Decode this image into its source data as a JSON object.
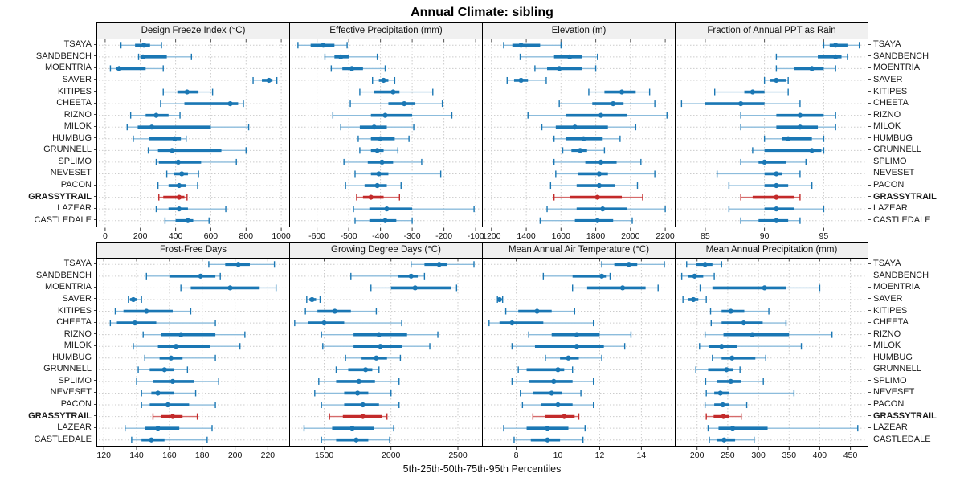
{
  "title": "Annual Climate: sibling",
  "caption": "5th-25th-50th-75th-95th Percentiles",
  "percentiles": [
    5,
    25,
    50,
    75,
    95
  ],
  "sites": [
    "TSAYA",
    "SANDBENCH",
    "MOENTRIA",
    "SAVER",
    "KITIPES",
    "CHEETA",
    "RIZNO",
    "MILOK",
    "HUMBUG",
    "GRUNNELL",
    "SPLIMO",
    "NEVESET",
    "PACON",
    "GRASSYTRAIL",
    "LAZEAR",
    "CASTLEDALE"
  ],
  "highlight_site": "GRASSYTRAIL",
  "colors": {
    "series": "#1a77b4",
    "series_light": "#8cbcdc",
    "highlight": "#c32a2a",
    "highlight_light": "#d56a6a",
    "grid": "#cccccc",
    "strip_bg": "#f0f0f0",
    "border": "#000000"
  },
  "layout": {
    "grid": "2 rows x 4 cols",
    "gridlines": "dotted",
    "legend": "none"
  },
  "chart_data": [
    {
      "type": "dotplot",
      "title": "Design Freeze Index (°C)",
      "xlim": [
        -45,
        1045
      ],
      "ticks": [
        0,
        200,
        400,
        600,
        800,
        1000
      ],
      "values": [
        [
          90,
          170,
          220,
          255,
          320
        ],
        [
          190,
          200,
          215,
          350,
          490
        ],
        [
          30,
          60,
          80,
          230,
          330
        ],
        [
          840,
          890,
          930,
          950,
          975
        ],
        [
          330,
          410,
          465,
          530,
          610
        ],
        [
          315,
          450,
          710,
          755,
          785
        ],
        [
          145,
          230,
          290,
          360,
          425
        ],
        [
          125,
          185,
          265,
          600,
          815
        ],
        [
          160,
          250,
          395,
          430,
          460
        ],
        [
          245,
          300,
          380,
          660,
          800
        ],
        [
          290,
          305,
          415,
          545,
          745
        ],
        [
          350,
          390,
          435,
          470,
          530
        ],
        [
          300,
          360,
          420,
          460,
          525
        ],
        [
          305,
          330,
          420,
          450,
          465
        ],
        [
          290,
          360,
          420,
          470,
          685
        ],
        [
          340,
          400,
          470,
          500,
          590
        ]
      ]
    },
    {
      "type": "dotplot",
      "title": "Effective Precipitation (mm)",
      "xlim": [
        -685,
        -80
      ],
      "ticks": [
        -600,
        -500,
        -400,
        -300,
        -200,
        -100
      ],
      "values": [
        [
          -660,
          -620,
          -580,
          -545,
          -505
        ],
        [
          -575,
          -545,
          -525,
          -500,
          -410
        ],
        [
          -555,
          -520,
          -490,
          -455,
          -385
        ],
        [
          -425,
          -405,
          -390,
          -375,
          -355
        ],
        [
          -465,
          -420,
          -360,
          -340,
          -235
        ],
        [
          -495,
          -375,
          -325,
          -290,
          -205
        ],
        [
          -550,
          -430,
          -385,
          -300,
          -175
        ],
        [
          -525,
          -465,
          -420,
          -380,
          -295
        ],
        [
          -470,
          -430,
          -400,
          -355,
          -310
        ],
        [
          -465,
          -430,
          -410,
          -390,
          -345
        ],
        [
          -515,
          -440,
          -395,
          -360,
          -270
        ],
        [
          -480,
          -430,
          -405,
          -375,
          -210
        ],
        [
          -510,
          -450,
          -410,
          -380,
          -335
        ],
        [
          -475,
          -455,
          -430,
          -390,
          -340
        ],
        [
          -485,
          -435,
          -380,
          -300,
          -105
        ],
        [
          -480,
          -435,
          -385,
          -350,
          -300
        ]
      ]
    },
    {
      "type": "dotplot",
      "title": "Elevation (m)",
      "xlim": [
        1150,
        2255
      ],
      "ticks": [
        1200,
        1400,
        1600,
        1800,
        2000,
        2200
      ],
      "values": [
        [
          1270,
          1320,
          1370,
          1480,
          1600
        ],
        [
          1365,
          1560,
          1650,
          1720,
          1810
        ],
        [
          1450,
          1520,
          1590,
          1720,
          1800
        ],
        [
          1290,
          1330,
          1370,
          1410,
          1515
        ],
        [
          1760,
          1850,
          1950,
          2030,
          2110
        ],
        [
          1590,
          1780,
          1900,
          1960,
          2140
        ],
        [
          1410,
          1630,
          1830,
          1980,
          2210
        ],
        [
          1490,
          1570,
          1680,
          1870,
          2030
        ],
        [
          1560,
          1630,
          1730,
          1840,
          1940
        ],
        [
          1610,
          1660,
          1710,
          1750,
          1850
        ],
        [
          1560,
          1740,
          1830,
          1920,
          2060
        ],
        [
          1570,
          1700,
          1820,
          1870,
          2140
        ],
        [
          1540,
          1690,
          1820,
          1910,
          2040
        ],
        [
          1560,
          1650,
          1810,
          1950,
          2070
        ],
        [
          1520,
          1690,
          1840,
          1980,
          2200
        ],
        [
          1480,
          1680,
          1810,
          1900,
          2010
        ]
      ]
    },
    {
      "type": "dotplot",
      "title": "Fraction of Annual PPT as Rain",
      "xlim": [
        82.5,
        98.7
      ],
      "ticks": [
        85,
        90,
        95
      ],
      "values": [
        [
          95,
          95.5,
          96,
          97,
          98
        ],
        [
          91,
          94.5,
          96,
          96.5,
          97
        ],
        [
          91,
          92.5,
          94,
          95,
          96
        ],
        [
          90,
          90.5,
          91,
          91.8,
          92
        ],
        [
          85.8,
          88.3,
          89,
          90,
          92
        ],
        [
          83,
          85,
          88,
          90,
          93
        ],
        [
          88,
          91,
          93,
          95,
          96
        ],
        [
          88,
          91,
          93,
          94.5,
          96
        ],
        [
          90,
          91.5,
          92,
          94,
          95
        ],
        [
          89,
          90,
          94,
          94.8,
          95
        ],
        [
          88,
          89.5,
          90,
          91.8,
          93.5
        ],
        [
          86,
          90,
          91,
          91.5,
          93
        ],
        [
          87,
          90,
          91,
          92,
          94
        ],
        [
          88,
          89,
          91,
          92.5,
          93
        ],
        [
          87,
          90,
          91,
          92.5,
          95
        ],
        [
          88,
          89.5,
          91,
          92,
          93
        ]
      ]
    },
    {
      "type": "dotplot",
      "title": "Frost-Free Days",
      "xlim": [
        116,
        233
      ],
      "ticks": [
        120,
        140,
        160,
        180,
        200,
        220
      ],
      "values": [
        [
          184,
          194,
          202,
          209,
          224
        ],
        [
          146,
          160,
          179,
          188,
          191
        ],
        [
          167,
          173,
          197,
          215,
          225
        ],
        [
          135,
          136,
          138,
          140,
          143
        ],
        [
          127,
          132,
          146,
          162,
          173
        ],
        [
          124,
          128,
          139,
          152,
          188
        ],
        [
          144,
          155,
          167,
          188,
          206
        ],
        [
          138,
          153,
          164,
          185,
          203
        ],
        [
          145,
          154,
          161,
          168,
          188
        ],
        [
          141,
          148,
          157,
          163,
          171
        ],
        [
          140,
          150,
          162,
          175,
          190
        ],
        [
          143,
          149,
          153,
          163,
          176
        ],
        [
          143,
          148,
          159,
          172,
          188
        ],
        [
          150,
          155,
          162,
          168,
          177
        ],
        [
          133,
          145,
          153,
          166,
          186
        ],
        [
          137,
          143,
          149,
          157,
          183
        ]
      ]
    },
    {
      "type": "dotplot",
      "title": "Growing Degree Days (°C)",
      "xlim": [
        1245,
        2680
      ],
      "ticks": [
        1500,
        2000,
        2500
      ],
      "values": [
        [
          2150,
          2250,
          2360,
          2420,
          2620
        ],
        [
          1700,
          2050,
          2150,
          2200,
          2250
        ],
        [
          1850,
          2000,
          2180,
          2450,
          2490
        ],
        [
          1370,
          1390,
          1410,
          1440,
          1470
        ],
        [
          1360,
          1450,
          1580,
          1700,
          1890
        ],
        [
          1280,
          1380,
          1500,
          1650,
          2080
        ],
        [
          1480,
          1720,
          1910,
          2120,
          2350
        ],
        [
          1490,
          1720,
          1920,
          2080,
          2290
        ],
        [
          1660,
          1780,
          1890,
          1970,
          2070
        ],
        [
          1590,
          1680,
          1810,
          1860,
          1910
        ],
        [
          1460,
          1590,
          1760,
          1880,
          2060
        ],
        [
          1430,
          1650,
          1750,
          1830,
          2000
        ],
        [
          1480,
          1650,
          1790,
          1910,
          2060
        ],
        [
          1540,
          1640,
          1790,
          1930,
          1970
        ],
        [
          1350,
          1560,
          1710,
          1870,
          2020
        ],
        [
          1480,
          1590,
          1740,
          1830,
          1990
        ]
      ]
    },
    {
      "type": "dotplot",
      "title": "Mean Annual Air Temperature (°C)",
      "xlim": [
        6.4,
        15.6
      ],
      "ticks": [
        8,
        10,
        12,
        14
      ],
      "values": [
        [
          12.1,
          12.7,
          13.4,
          13.8,
          15.1
        ],
        [
          9.3,
          10.7,
          12.1,
          12.3,
          12.5
        ],
        [
          10.7,
          11.4,
          13.1,
          14.2,
          14.8
        ],
        [
          7.1,
          7.15,
          7.2,
          7.3,
          7.35
        ],
        [
          7.5,
          8.1,
          9.0,
          9.7,
          10.8
        ],
        [
          6.7,
          7.2,
          7.8,
          9.3,
          11.7
        ],
        [
          8.6,
          9.7,
          10.9,
          12.0,
          13.5
        ],
        [
          7.8,
          8.9,
          10.9,
          12.2,
          13.2
        ],
        [
          9.4,
          10.1,
          10.5,
          11.0,
          12.1
        ],
        [
          8.1,
          8.5,
          10.0,
          10.3,
          10.7
        ],
        [
          7.8,
          8.6,
          9.8,
          10.7,
          11.7
        ],
        [
          8.2,
          8.8,
          9.7,
          10.2,
          11.1
        ],
        [
          8.3,
          9.2,
          10.0,
          10.7,
          11.7
        ],
        [
          8.8,
          9.4,
          10.3,
          10.8,
          11.0
        ],
        [
          7.4,
          8.5,
          9.5,
          10.5,
          11.3
        ],
        [
          7.9,
          8.7,
          9.5,
          10.1,
          11.2
        ]
      ]
    },
    {
      "type": "dotplot",
      "title": "Mean Annual Precipitation (mm)",
      "xlim": [
        165,
        478
      ],
      "ticks": [
        200,
        250,
        300,
        350,
        400,
        450
      ],
      "values": [
        [
          183,
          198,
          213,
          225,
          240
        ],
        [
          175,
          185,
          196,
          210,
          228
        ],
        [
          205,
          225,
          310,
          345,
          400
        ],
        [
          177,
          185,
          194,
          202,
          215
        ],
        [
          222,
          240,
          255,
          277,
          317
        ],
        [
          223,
          240,
          276,
          307,
          345
        ],
        [
          213,
          243,
          290,
          350,
          420
        ],
        [
          204,
          220,
          240,
          265,
          370
        ],
        [
          225,
          240,
          257,
          295,
          312
        ],
        [
          198,
          218,
          248,
          258,
          270
        ],
        [
          214,
          233,
          255,
          272,
          308
        ],
        [
          215,
          228,
          238,
          252,
          358
        ],
        [
          213,
          228,
          242,
          252,
          281
        ],
        [
          215,
          227,
          243,
          252,
          272
        ],
        [
          218,
          235,
          258,
          315,
          462
        ],
        [
          220,
          232,
          244,
          262,
          293
        ]
      ]
    }
  ]
}
